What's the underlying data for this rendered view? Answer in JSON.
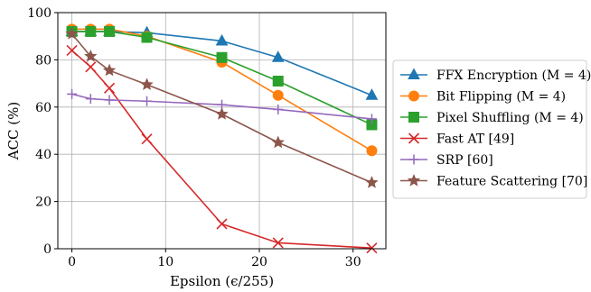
{
  "chart_data": {
    "type": "line",
    "xlabel": "Epsilon (ϵ/255)",
    "ylabel": "ACC (%)",
    "xlim": [
      -1.5,
      33.5
    ],
    "ylim": [
      0,
      100
    ],
    "xticks": [
      0,
      10,
      20,
      30
    ],
    "yticks": [
      0,
      20,
      40,
      60,
      80,
      100
    ],
    "grid": true,
    "legend_position": "right",
    "series": [
      {
        "name": "FFX Encryption (M = 4)",
        "color": "#1f77b4",
        "marker": "triangle",
        "x": [
          0,
          2,
          4,
          8,
          16,
          22,
          32
        ],
        "y": [
          92,
          92,
          92,
          91.5,
          88,
          81,
          65
        ]
      },
      {
        "name": "Bit Flipping (M = 4)",
        "color": "#ff7f0e",
        "marker": "circle",
        "x": [
          0,
          2,
          4,
          8,
          16,
          22,
          32
        ],
        "y": [
          93,
          93,
          93,
          90,
          79,
          65,
          41.5
        ]
      },
      {
        "name": "Pixel Shuffling (M = 4)",
        "color": "#2ca02c",
        "marker": "square",
        "x": [
          0,
          2,
          4,
          8,
          16,
          22,
          32
        ],
        "y": [
          92,
          92,
          92,
          89.5,
          81,
          71,
          52.5
        ]
      },
      {
        "name": "Fast AT [49]",
        "color": "#d62728",
        "marker": "x",
        "x": [
          0,
          2,
          4,
          8,
          16,
          22,
          32
        ],
        "y": [
          84,
          77,
          68,
          46.5,
          10.5,
          2.5,
          0.3
        ]
      },
      {
        "name": "SRP [60]",
        "color": "#9467bd",
        "marker": "plus",
        "x": [
          0,
          2,
          4,
          8,
          16,
          22,
          32
        ],
        "y": [
          65.5,
          63.5,
          63,
          62.5,
          61,
          59,
          55
        ]
      },
      {
        "name": "Feature Scattering [70]",
        "color": "#8c564b",
        "marker": "star",
        "x": [
          0,
          2,
          4,
          8,
          16,
          22,
          32
        ],
        "y": [
          91,
          81.5,
          75.5,
          69.5,
          57,
          45,
          28
        ]
      }
    ]
  }
}
